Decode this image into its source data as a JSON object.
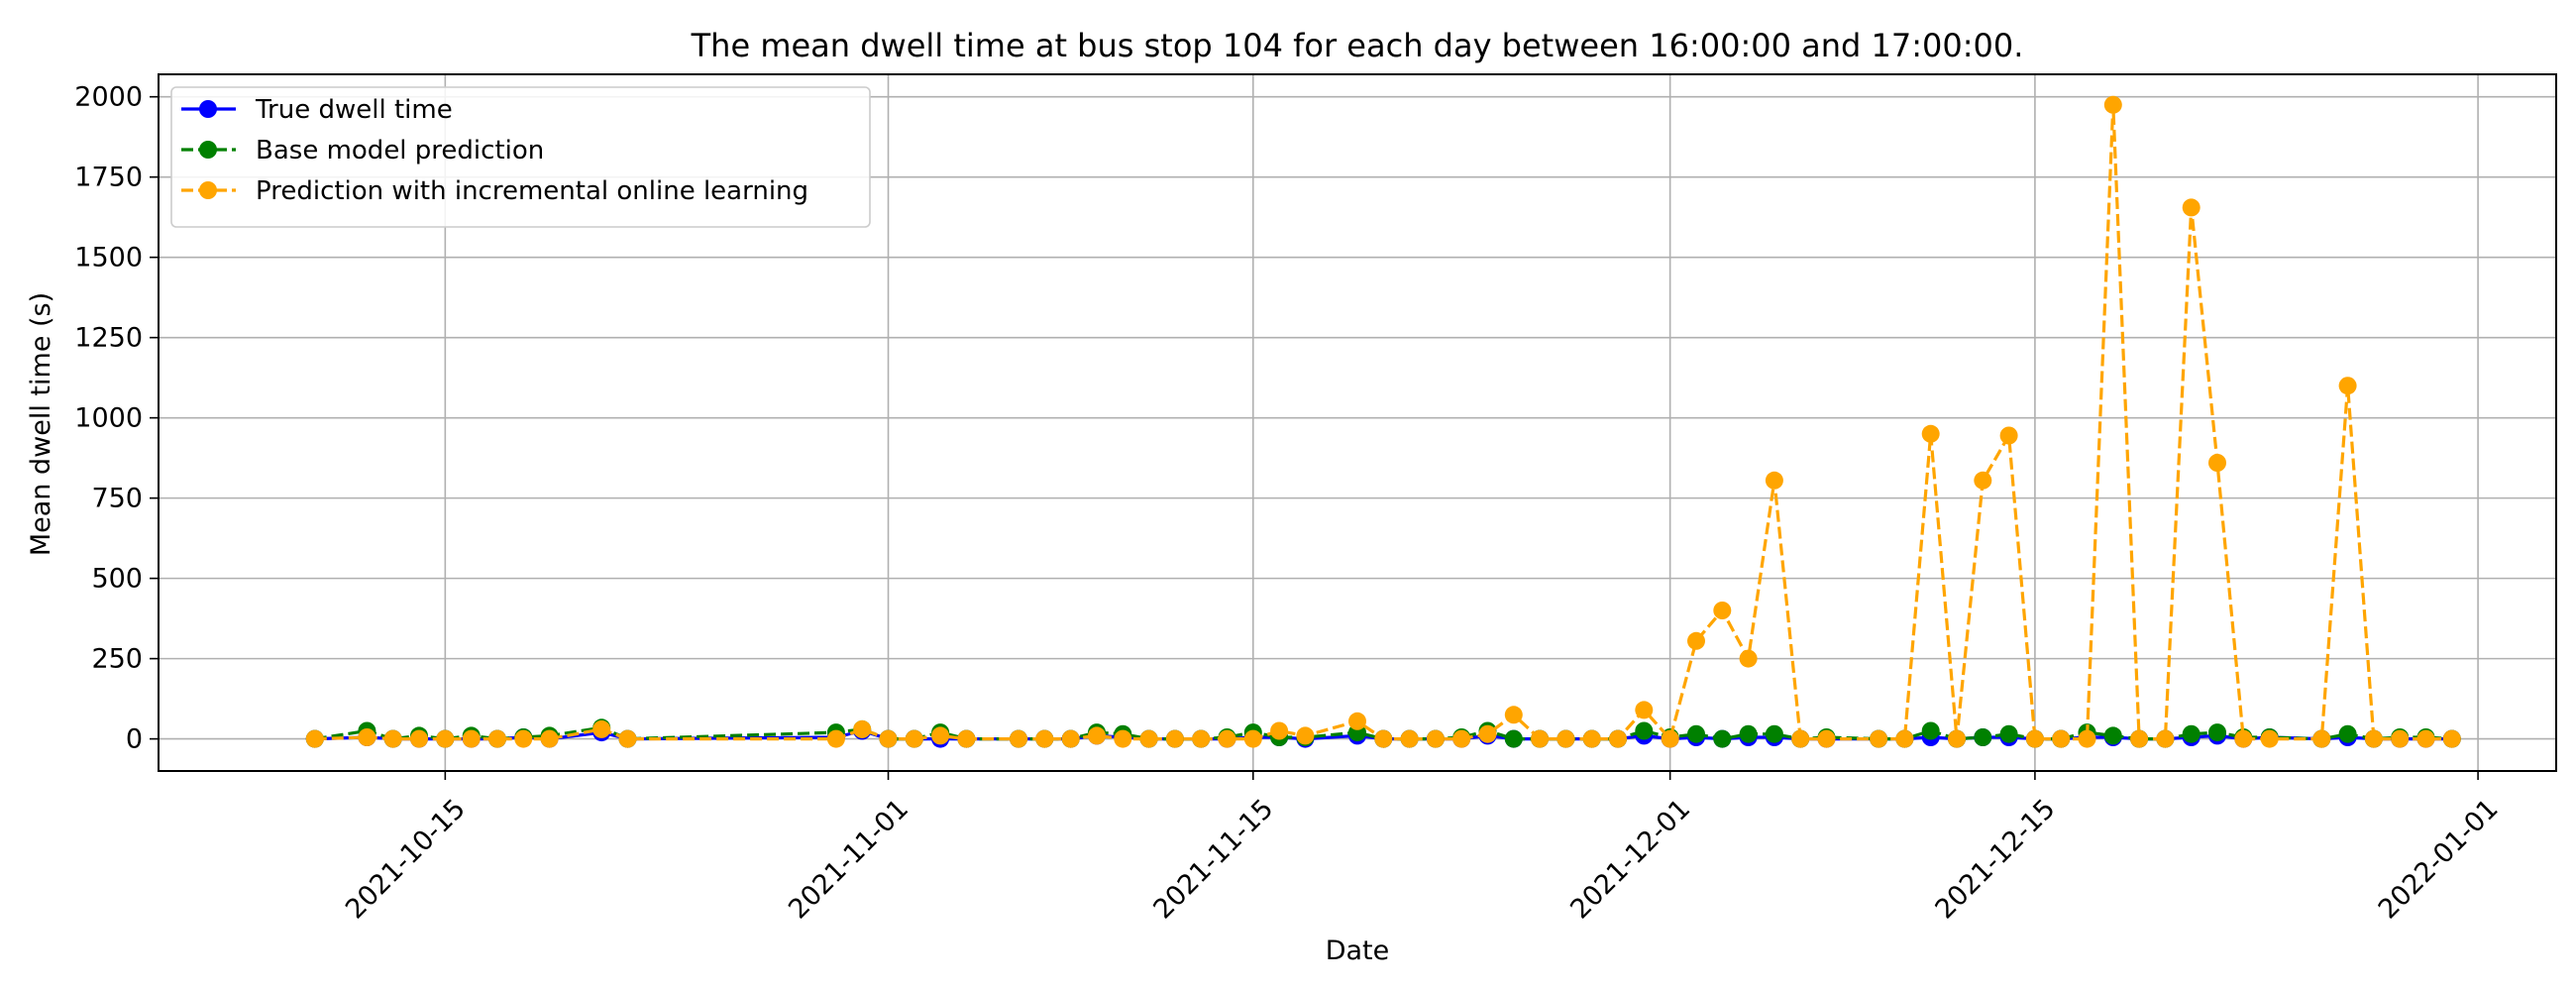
{
  "chart_data": {
    "type": "line",
    "title": "The mean dwell time at bus stop 104 for each day between 16:00:00 and 17:00:00.",
    "xlabel": "Date",
    "ylabel": "Mean dwell time (s)",
    "x_ticks": [
      "2021-10-15",
      "2021-11-01",
      "2021-11-15",
      "2021-12-01",
      "2021-12-15",
      "2022-01-01"
    ],
    "y_ticks": [
      "0",
      "250",
      "500",
      "750",
      "1000",
      "1250",
      "1500",
      "1750",
      "2000"
    ],
    "xlim": [
      "2021-10-04",
      "2022-01-04"
    ],
    "ylim": [
      -100,
      2070
    ],
    "grid": true,
    "legend_position": "upper-left",
    "series": [
      {
        "name": "True dwell time",
        "color": "#0000ff",
        "linestyle": "solid",
        "points": [
          [
            "2021-10-10",
            0
          ],
          [
            "2021-10-12",
            5
          ],
          [
            "2021-10-13",
            0
          ],
          [
            "2021-10-14",
            0
          ],
          [
            "2021-10-15",
            0
          ],
          [
            "2021-10-16",
            0
          ],
          [
            "2021-10-17",
            0
          ],
          [
            "2021-10-18",
            5
          ],
          [
            "2021-10-19",
            0
          ],
          [
            "2021-10-21",
            20
          ],
          [
            "2021-10-22",
            0
          ],
          [
            "2021-10-30",
            5
          ],
          [
            "2021-10-31",
            25
          ],
          [
            "2021-11-01",
            0
          ],
          [
            "2021-11-02",
            0
          ],
          [
            "2021-11-03",
            0
          ],
          [
            "2021-11-04",
            0
          ],
          [
            "2021-11-06",
            0
          ],
          [
            "2021-11-07",
            0
          ],
          [
            "2021-11-08",
            0
          ],
          [
            "2021-11-09",
            10
          ],
          [
            "2021-11-10",
            5
          ],
          [
            "2021-11-11",
            0
          ],
          [
            "2021-11-12",
            0
          ],
          [
            "2021-11-13",
            0
          ],
          [
            "2021-11-14",
            0
          ],
          [
            "2021-11-15",
            5
          ],
          [
            "2021-11-16",
            5
          ],
          [
            "2021-11-17",
            0
          ],
          [
            "2021-11-19",
            10
          ],
          [
            "2021-11-20",
            0
          ],
          [
            "2021-11-21",
            0
          ],
          [
            "2021-11-22",
            0
          ],
          [
            "2021-11-23",
            0
          ],
          [
            "2021-11-24",
            10
          ],
          [
            "2021-11-25",
            0
          ],
          [
            "2021-11-26",
            0
          ],
          [
            "2021-11-27",
            0
          ],
          [
            "2021-11-28",
            0
          ],
          [
            "2021-11-29",
            0
          ],
          [
            "2021-11-30",
            10
          ],
          [
            "2021-12-01",
            0
          ],
          [
            "2021-12-02",
            5
          ],
          [
            "2021-12-03",
            0
          ],
          [
            "2021-12-04",
            5
          ],
          [
            "2021-12-05",
            5
          ],
          [
            "2021-12-06",
            0
          ],
          [
            "2021-12-07",
            0
          ],
          [
            "2021-12-09",
            0
          ],
          [
            "2021-12-10",
            0
          ],
          [
            "2021-12-11",
            5
          ],
          [
            "2021-12-12",
            0
          ],
          [
            "2021-12-13",
            5
          ],
          [
            "2021-12-14",
            5
          ],
          [
            "2021-12-15",
            0
          ],
          [
            "2021-12-16",
            0
          ],
          [
            "2021-12-17",
            5
          ],
          [
            "2021-12-18",
            5
          ],
          [
            "2021-12-19",
            0
          ],
          [
            "2021-12-20",
            0
          ],
          [
            "2021-12-21",
            5
          ],
          [
            "2021-12-22",
            10
          ],
          [
            "2021-12-23",
            0
          ],
          [
            "2021-12-24",
            5
          ],
          [
            "2021-12-26",
            0
          ],
          [
            "2021-12-27",
            5
          ],
          [
            "2021-12-28",
            0
          ],
          [
            "2021-12-29",
            0
          ],
          [
            "2021-12-30",
            0
          ],
          [
            "2021-12-31",
            0
          ]
        ]
      },
      {
        "name": "Base model prediction",
        "color": "#008000",
        "linestyle": "dashed",
        "points": [
          [
            "2021-10-10",
            0
          ],
          [
            "2021-10-12",
            25
          ],
          [
            "2021-10-13",
            0
          ],
          [
            "2021-10-14",
            10
          ],
          [
            "2021-10-15",
            0
          ],
          [
            "2021-10-16",
            10
          ],
          [
            "2021-10-17",
            0
          ],
          [
            "2021-10-18",
            5
          ],
          [
            "2021-10-19",
            10
          ],
          [
            "2021-10-21",
            35
          ],
          [
            "2021-10-22",
            0
          ],
          [
            "2021-10-30",
            20
          ],
          [
            "2021-10-31",
            30
          ],
          [
            "2021-11-01",
            0
          ],
          [
            "2021-11-02",
            0
          ],
          [
            "2021-11-03",
            20
          ],
          [
            "2021-11-04",
            0
          ],
          [
            "2021-11-06",
            0
          ],
          [
            "2021-11-07",
            0
          ],
          [
            "2021-11-08",
            0
          ],
          [
            "2021-11-09",
            20
          ],
          [
            "2021-11-10",
            15
          ],
          [
            "2021-11-11",
            0
          ],
          [
            "2021-11-12",
            0
          ],
          [
            "2021-11-13",
            0
          ],
          [
            "2021-11-14",
            5
          ],
          [
            "2021-11-15",
            20
          ],
          [
            "2021-11-16",
            5
          ],
          [
            "2021-11-17",
            5
          ],
          [
            "2021-11-19",
            20
          ],
          [
            "2021-11-20",
            0
          ],
          [
            "2021-11-21",
            0
          ],
          [
            "2021-11-22",
            0
          ],
          [
            "2021-11-23",
            5
          ],
          [
            "2021-11-24",
            25
          ],
          [
            "2021-11-25",
            0
          ],
          [
            "2021-11-26",
            0
          ],
          [
            "2021-11-27",
            0
          ],
          [
            "2021-11-28",
            0
          ],
          [
            "2021-11-29",
            0
          ],
          [
            "2021-11-30",
            25
          ],
          [
            "2021-12-01",
            5
          ],
          [
            "2021-12-02",
            15
          ],
          [
            "2021-12-03",
            0
          ],
          [
            "2021-12-04",
            15
          ],
          [
            "2021-12-05",
            15
          ],
          [
            "2021-12-06",
            0
          ],
          [
            "2021-12-07",
            5
          ],
          [
            "2021-12-09",
            0
          ],
          [
            "2021-12-10",
            0
          ],
          [
            "2021-12-11",
            25
          ],
          [
            "2021-12-12",
            0
          ],
          [
            "2021-12-13",
            5
          ],
          [
            "2021-12-14",
            15
          ],
          [
            "2021-12-15",
            0
          ],
          [
            "2021-12-16",
            0
          ],
          [
            "2021-12-17",
            20
          ],
          [
            "2021-12-18",
            10
          ],
          [
            "2021-12-19",
            0
          ],
          [
            "2021-12-20",
            0
          ],
          [
            "2021-12-21",
            15
          ],
          [
            "2021-12-22",
            20
          ],
          [
            "2021-12-23",
            5
          ],
          [
            "2021-12-24",
            5
          ],
          [
            "2021-12-26",
            0
          ],
          [
            "2021-12-27",
            15
          ],
          [
            "2021-12-28",
            0
          ],
          [
            "2021-12-29",
            5
          ],
          [
            "2021-12-30",
            5
          ],
          [
            "2021-12-31",
            0
          ]
        ]
      },
      {
        "name": "Prediction with incremental online learning",
        "color": "#ffa500",
        "linestyle": "dashed",
        "points": [
          [
            "2021-10-10",
            0
          ],
          [
            "2021-10-12",
            5
          ],
          [
            "2021-10-13",
            0
          ],
          [
            "2021-10-14",
            0
          ],
          [
            "2021-10-15",
            0
          ],
          [
            "2021-10-16",
            0
          ],
          [
            "2021-10-17",
            0
          ],
          [
            "2021-10-18",
            0
          ],
          [
            "2021-10-19",
            0
          ],
          [
            "2021-10-21",
            30
          ],
          [
            "2021-10-22",
            0
          ],
          [
            "2021-10-30",
            0
          ],
          [
            "2021-10-31",
            30
          ],
          [
            "2021-11-01",
            0
          ],
          [
            "2021-11-02",
            0
          ],
          [
            "2021-11-03",
            10
          ],
          [
            "2021-11-04",
            0
          ],
          [
            "2021-11-06",
            0
          ],
          [
            "2021-11-07",
            0
          ],
          [
            "2021-11-08",
            0
          ],
          [
            "2021-11-09",
            10
          ],
          [
            "2021-11-10",
            0
          ],
          [
            "2021-11-11",
            0
          ],
          [
            "2021-11-12",
            0
          ],
          [
            "2021-11-13",
            0
          ],
          [
            "2021-11-14",
            0
          ],
          [
            "2021-11-15",
            0
          ],
          [
            "2021-11-16",
            25
          ],
          [
            "2021-11-17",
            10
          ],
          [
            "2021-11-19",
            55
          ],
          [
            "2021-11-20",
            0
          ],
          [
            "2021-11-21",
            0
          ],
          [
            "2021-11-22",
            0
          ],
          [
            "2021-11-23",
            0
          ],
          [
            "2021-11-24",
            15
          ],
          [
            "2021-11-25",
            75
          ],
          [
            "2021-11-26",
            0
          ],
          [
            "2021-11-27",
            0
          ],
          [
            "2021-11-28",
            0
          ],
          [
            "2021-11-29",
            0
          ],
          [
            "2021-11-30",
            90
          ],
          [
            "2021-12-01",
            0
          ],
          [
            "2021-12-02",
            305
          ],
          [
            "2021-12-03",
            400
          ],
          [
            "2021-12-04",
            250
          ],
          [
            "2021-12-05",
            805
          ],
          [
            "2021-12-06",
            0
          ],
          [
            "2021-12-07",
            0
          ],
          [
            "2021-12-09",
            0
          ],
          [
            "2021-12-10",
            0
          ],
          [
            "2021-12-11",
            950
          ],
          [
            "2021-12-12",
            0
          ],
          [
            "2021-12-13",
            805
          ],
          [
            "2021-12-14",
            945
          ],
          [
            "2021-12-15",
            0
          ],
          [
            "2021-12-16",
            0
          ],
          [
            "2021-12-17",
            0
          ],
          [
            "2021-12-18",
            1975
          ],
          [
            "2021-12-19",
            0
          ],
          [
            "2021-12-20",
            0
          ],
          [
            "2021-12-21",
            1655
          ],
          [
            "2021-12-22",
            860
          ],
          [
            "2021-12-23",
            0
          ],
          [
            "2021-12-24",
            0
          ],
          [
            "2021-12-26",
            0
          ],
          [
            "2021-12-27",
            1100
          ],
          [
            "2021-12-28",
            0
          ],
          [
            "2021-12-29",
            0
          ],
          [
            "2021-12-30",
            0
          ],
          [
            "2021-12-31",
            0
          ]
        ]
      }
    ]
  }
}
